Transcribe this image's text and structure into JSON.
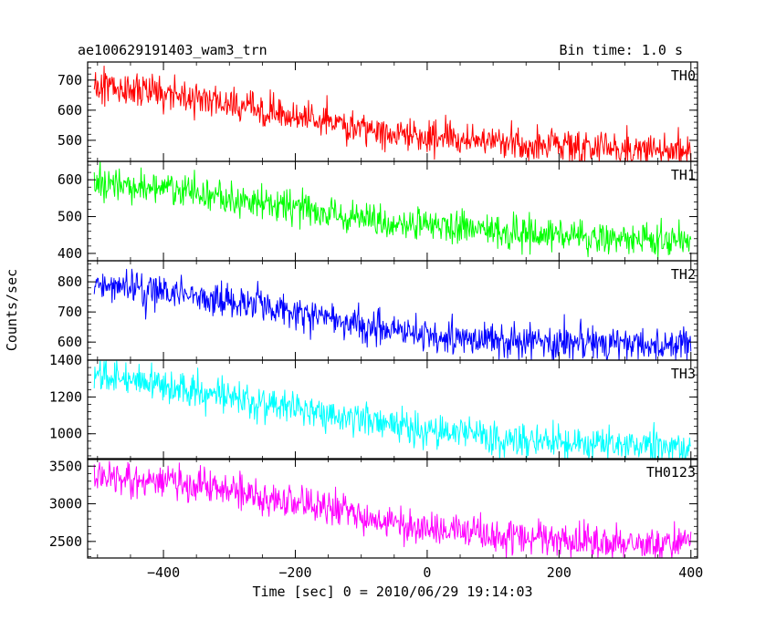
{
  "header": {
    "title": "ae100629191403_wam3_trn",
    "bin_time": "Bin time: 1.0 s"
  },
  "chart_data": {
    "type": "line",
    "xlabel": "Time [sec] 0 = 2010/06/29 19:14:03",
    "ylabel": "Counts/sec",
    "xlim": [
      -515,
      410
    ],
    "xticks": [
      -400,
      -200,
      0,
      200,
      400
    ],
    "xtick_labels": [
      "−400",
      "−200",
      "0",
      "200",
      "400"
    ],
    "x_sampling": {
      "start": -505,
      "end": 400,
      "step": 1
    },
    "panels": [
      {
        "name": "TH0",
        "color": "#ff0000",
        "ylim": [
          430,
          760
        ],
        "yticks": [
          500,
          600,
          700
        ],
        "trend": [
          [
            -505,
            680
          ],
          [
            -400,
            655
          ],
          [
            -300,
            620
          ],
          [
            -200,
            580
          ],
          [
            -100,
            545
          ],
          [
            0,
            510
          ],
          [
            100,
            495
          ],
          [
            200,
            485
          ],
          [
            300,
            470
          ],
          [
            400,
            465
          ]
        ]
      },
      {
        "name": "TH1",
        "color": "#00ff00",
        "ylim": [
          380,
          650
        ],
        "yticks": [
          400,
          500,
          600
        ],
        "trend": [
          [
            -505,
            590
          ],
          [
            -400,
            575
          ],
          [
            -300,
            550
          ],
          [
            -200,
            520
          ],
          [
            -100,
            495
          ],
          [
            0,
            475
          ],
          [
            100,
            460
          ],
          [
            200,
            450
          ],
          [
            300,
            440
          ],
          [
            400,
            435
          ]
        ]
      },
      {
        "name": "TH2",
        "color": "#0000ff",
        "ylim": [
          540,
          870
        ],
        "yticks": [
          600,
          700,
          800
        ],
        "trend": [
          [
            -505,
            790
          ],
          [
            -400,
            765
          ],
          [
            -300,
            735
          ],
          [
            -200,
            695
          ],
          [
            -100,
            655
          ],
          [
            0,
            625
          ],
          [
            100,
            610
          ],
          [
            200,
            600
          ],
          [
            300,
            595
          ],
          [
            400,
            590
          ]
        ]
      },
      {
        "name": "TH3",
        "color": "#00ffff",
        "ylim": [
          860,
          1400
        ],
        "yticks": [
          1000,
          1200,
          1400
        ],
        "trend": [
          [
            -505,
            1320
          ],
          [
            -400,
            1260
          ],
          [
            -300,
            1200
          ],
          [
            -200,
            1130
          ],
          [
            -100,
            1070
          ],
          [
            0,
            1010
          ],
          [
            100,
            975
          ],
          [
            200,
            955
          ],
          [
            300,
            940
          ],
          [
            400,
            930
          ]
        ]
      },
      {
        "name": "TH0123",
        "color": "#ff00ff",
        "ylim": [
          2280,
          3600
        ],
        "yticks": [
          2500,
          3000,
          3500
        ],
        "trend": [
          [
            -505,
            3380
          ],
          [
            -400,
            3300
          ],
          [
            -300,
            3180
          ],
          [
            -200,
            3000
          ],
          [
            -100,
            2830
          ],
          [
            0,
            2680
          ],
          [
            100,
            2580
          ],
          [
            200,
            2520
          ],
          [
            300,
            2470
          ],
          [
            400,
            2450
          ]
        ]
      }
    ]
  }
}
